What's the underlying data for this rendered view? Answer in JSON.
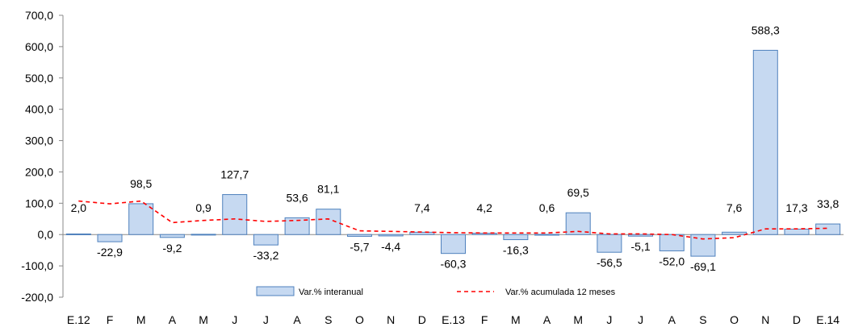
{
  "chart_data": {
    "type": "bar",
    "categories": [
      "E.12",
      "F",
      "M",
      "A",
      "M",
      "J",
      "J",
      "A",
      "S",
      "O",
      "N",
      "D",
      "E.13",
      "F",
      "M",
      "A",
      "M",
      "J",
      "J",
      "A",
      "S",
      "O",
      "N",
      "D",
      "E.14"
    ],
    "series": [
      {
        "name": "Var.% interanual",
        "type": "bar",
        "values": [
          2.0,
          -22.9,
          98.5,
          -9.2,
          0.9,
          127.7,
          -33.2,
          53.6,
          81.1,
          -5.7,
          -4.4,
          7.4,
          -60.3,
          4.2,
          -16.3,
          0.6,
          69.5,
          -56.5,
          -5.1,
          -52.0,
          -69.1,
          7.6,
          588.3,
          17.3,
          33.8
        ],
        "labels": [
          "2,0",
          "-22,9",
          "98,5",
          "-9,2",
          "0,9",
          "127,7",
          "-33,2",
          "53,6",
          "81,1",
          "-5,7",
          "-4,4",
          "7,4",
          "-60,3",
          "4,2",
          "-16,3",
          "0,6",
          "69,5",
          "-56,5",
          "-5,1",
          "-52,0",
          "-69,1",
          "7,6",
          "588,3",
          "17,3",
          "33,8"
        ],
        "color": "#c6d9f1",
        "border": "#4f81bd"
      },
      {
        "name": "Var.% acumulada 12 meses",
        "type": "line",
        "values": [
          107,
          98,
          107,
          38,
          45,
          50,
          42,
          45,
          50,
          12,
          10,
          8,
          6,
          5,
          5,
          5,
          10,
          2,
          2,
          0,
          -14,
          -10,
          18,
          18,
          20
        ],
        "color": "#ff0000",
        "style": "dashed"
      }
    ],
    "yticks": [
      "700,0",
      "600,0",
      "500,0",
      "400,0",
      "300,0",
      "200,0",
      "100,0",
      "0,0",
      "-100,0",
      "-200,0"
    ],
    "ytick_values": [
      700,
      600,
      500,
      400,
      300,
      200,
      100,
      0,
      -100,
      -200
    ],
    "ylim": [
      -200,
      700
    ],
    "title": "",
    "xlabel": "",
    "ylabel": "",
    "legend_position": "bottom-center",
    "grid": false
  }
}
